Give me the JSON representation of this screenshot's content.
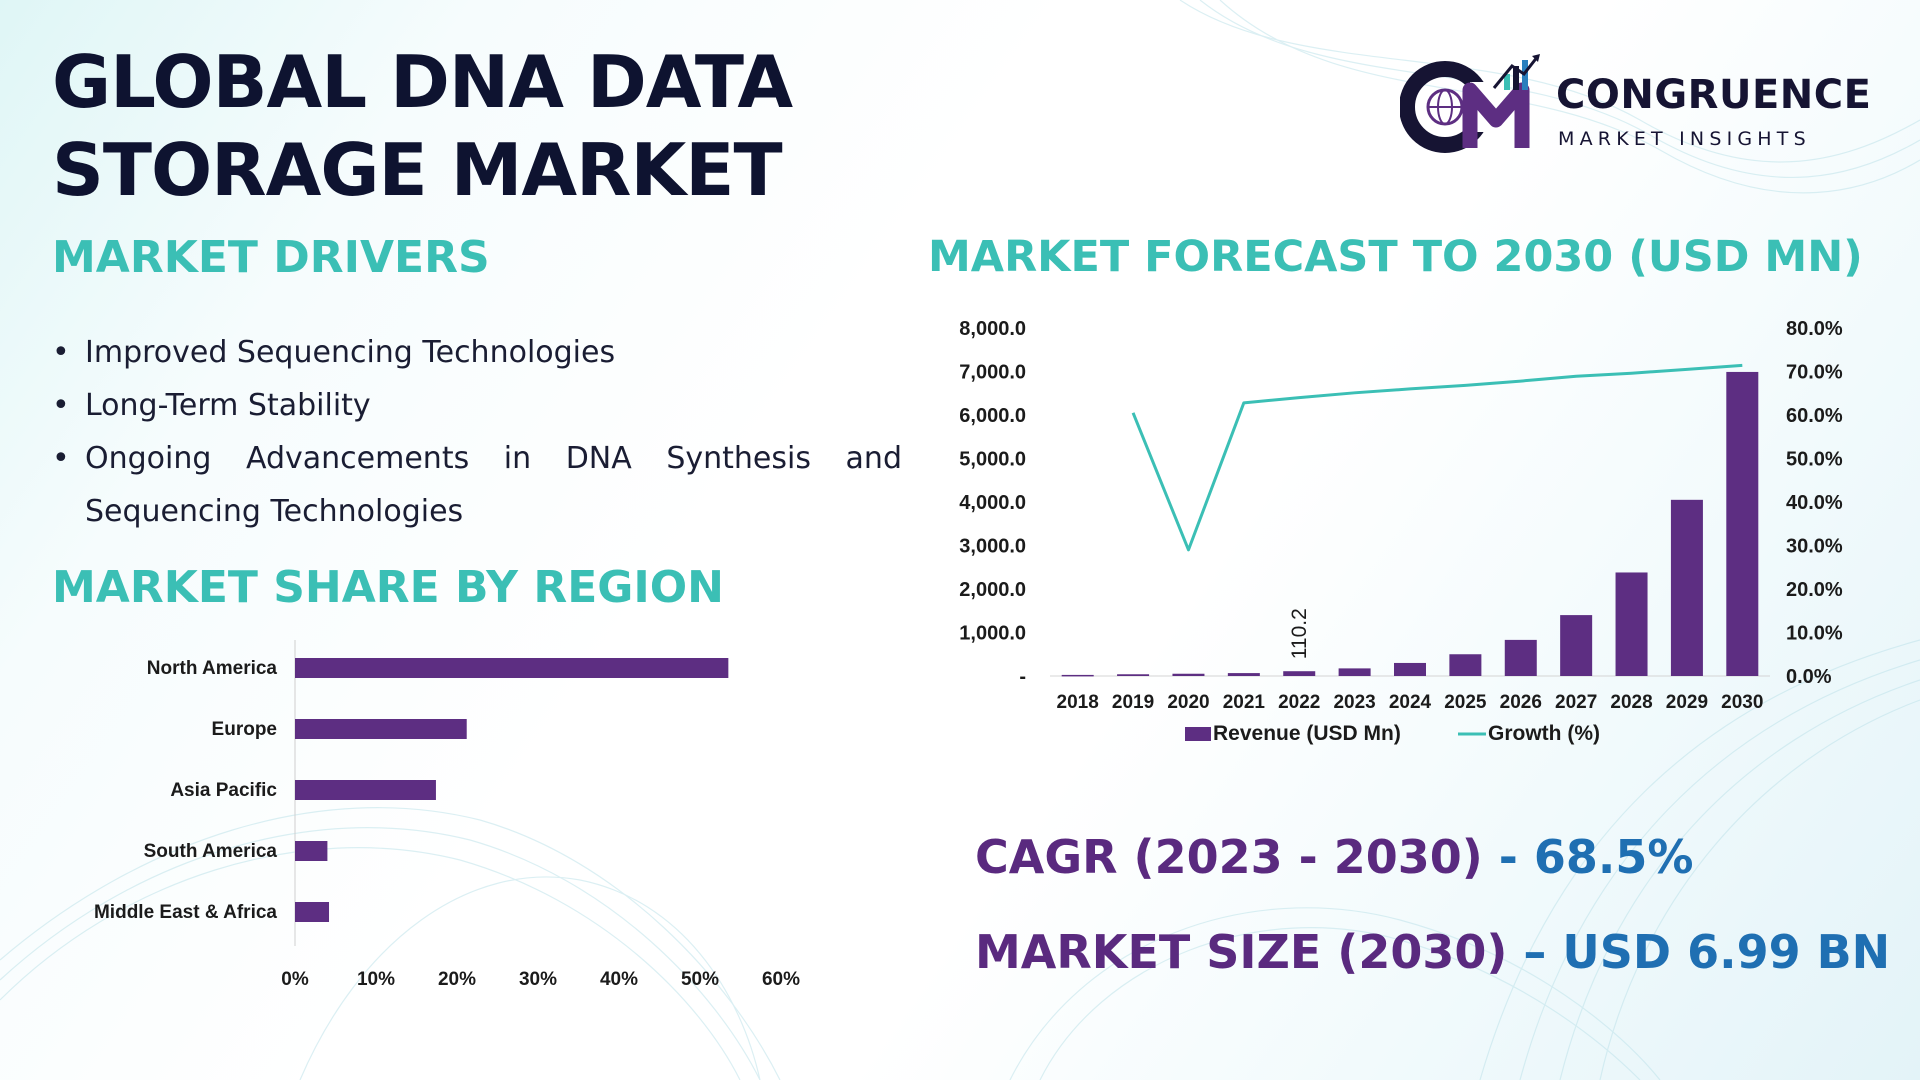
{
  "title": "GLOBAL DNA DATA STORAGE MARKET",
  "logo": {
    "name": "CONGRUENCE",
    "tagline": "MARKET INSIGHTS"
  },
  "drivers": {
    "heading": "MARKET DRIVERS",
    "items": [
      "Improved Sequencing Technologies",
      "Long-Term Stability",
      "Ongoing Advancements in DNA Synthesis and Sequencing Technologies"
    ]
  },
  "region": {
    "heading": "MARKET SHARE BY REGION"
  },
  "forecast": {
    "heading": "MARKET FORECAST TO 2030 (USD MN)"
  },
  "stats": {
    "cagr_label": "CAGR (2023 - 2030)",
    "cagr_sep": " - ",
    "cagr_value": "68.5%",
    "size_label": "MARKET SIZE (2030)",
    "size_sep": " – ",
    "size_value": "USD 6.99 BN"
  },
  "colors": {
    "bar": "#5d2e82",
    "line": "#3bbfb5",
    "teal_title": "#3bbfb5",
    "stat_label": "#5a2a7f",
    "stat_value": "#1f6fb2"
  },
  "chart_data": [
    {
      "type": "bar",
      "orientation": "horizontal",
      "title": "MARKET SHARE BY REGION",
      "categories": [
        "North America",
        "Europe",
        "Asia Pacific",
        "South America",
        "Middle East & Africa"
      ],
      "values": [
        53.5,
        21.2,
        17.4,
        4.0,
        4.2
      ],
      "xlim": [
        0,
        60
      ],
      "xticks": [
        "0%",
        "10%",
        "20%",
        "30%",
        "40%",
        "50%",
        "60%"
      ],
      "unit": "%"
    },
    {
      "type": "bar+line",
      "title": "MARKET FORECAST TO 2030 (USD MN)",
      "categories": [
        "2018",
        "2019",
        "2020",
        "2021",
        "2022",
        "2023",
        "2024",
        "2025",
        "2026",
        "2027",
        "2028",
        "2029",
        "2030"
      ],
      "series": [
        {
          "name": "Revenue (USD Mn)",
          "type": "bar",
          "axis": "left",
          "values": [
            25,
            40,
            52,
            67,
            110.2,
            175,
            300,
            500,
            830,
            1400,
            2380,
            4050,
            6990
          ]
        },
        {
          "name": "Growth (%)",
          "type": "line",
          "axis": "right",
          "values": [
            null,
            60.5,
            29.0,
            62.8,
            64.0,
            65.1,
            66.0,
            66.8,
            67.8,
            68.9,
            69.6,
            70.5,
            71.4
          ]
        }
      ],
      "ylim_left": [
        0,
        8000
      ],
      "ylim_right": [
        0,
        80
      ],
      "left_ticks": [
        "-",
        "1,000.0",
        "2,000.0",
        "3,000.0",
        "4,000.0",
        "5,000.0",
        "6,000.0",
        "7,000.0",
        "8,000.0"
      ],
      "right_ticks": [
        "0.0%",
        "10.0%",
        "20.0%",
        "30.0%",
        "40.0%",
        "50.0%",
        "60.0%",
        "70.0%",
        "80.0%"
      ],
      "data_label": {
        "category": "2022",
        "text": "110.2"
      },
      "legend": [
        "Revenue (USD Mn)",
        "Growth (%)"
      ]
    }
  ]
}
